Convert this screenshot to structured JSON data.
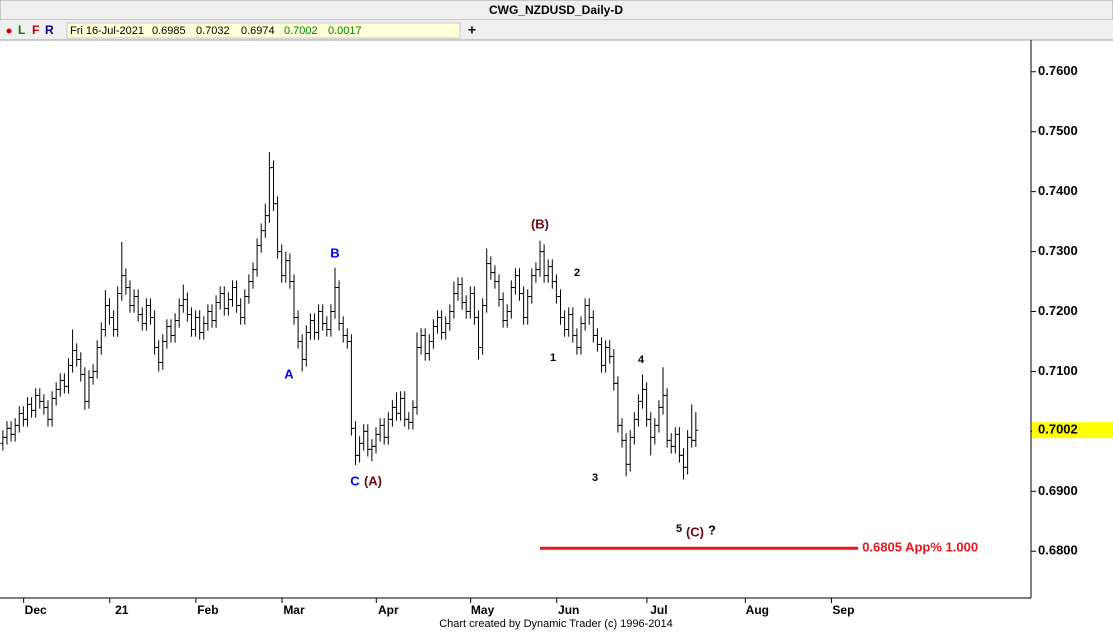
{
  "chart_data": {
    "type": "ohlc",
    "title": "CWG_NZDUSD_Daily-D",
    "menu": [
      "L",
      "F",
      "R"
    ],
    "date": "Fri 16-Jul-2021",
    "change": 0.0017,
    "footer": "Chart created by Dynamic Trader  (c) 1996-2014",
    "color": "#000000",
    "ylim": [
      0.6722,
      0.7653
    ],
    "yticks": [
      {
        "value": 0.68,
        "label": "0.6800"
      },
      {
        "value": 0.69,
        "label": "0.6900"
      },
      {
        "value": 0.7,
        "label": "0.7000"
      },
      {
        "value": 0.71,
        "label": "0.7100"
      },
      {
        "value": 0.72,
        "label": "0.7200"
      },
      {
        "value": 0.73,
        "label": "0.7300"
      },
      {
        "value": 0.74,
        "label": "0.7400"
      },
      {
        "value": 0.75,
        "label": "0.7500"
      },
      {
        "value": 0.76,
        "label": "0.7600"
      }
    ],
    "xlim": [
      -0.7,
      250.5
    ],
    "xticks": [
      {
        "value": 8,
        "label": "Dec"
      },
      {
        "value": 29,
        "label": "21"
      },
      {
        "value": 50,
        "label": "Feb"
      },
      {
        "value": 71,
        "label": "Mar"
      },
      {
        "value": 94,
        "label": "Apr"
      },
      {
        "value": 117,
        "label": "May"
      },
      {
        "value": 138,
        "label": "Jun"
      },
      {
        "value": 160,
        "label": "Jul"
      },
      {
        "value": 184,
        "label": "Aug"
      },
      {
        "value": 205,
        "label": "Sep"
      }
    ],
    "open": [
      0.698,
      0.699,
      0.7005,
      0.6995,
      0.701,
      0.703,
      0.702,
      0.7045,
      0.7035,
      0.706,
      0.705,
      0.704,
      0.702,
      0.7055,
      0.707,
      0.7085,
      0.7075,
      0.711,
      0.7135,
      0.712,
      0.7095,
      0.705,
      0.709,
      0.71,
      0.714,
      0.717,
      0.721,
      0.719,
      0.717,
      0.723,
      0.726,
      0.724,
      0.721,
      0.7225,
      0.7195,
      0.718,
      0.721,
      0.719,
      0.714,
      0.7115,
      0.715,
      0.7175,
      0.716,
      0.7185,
      0.721,
      0.722,
      0.7195,
      0.717,
      0.719,
      0.7165,
      0.718,
      0.72,
      0.7185,
      0.7215,
      0.723,
      0.7205,
      0.722,
      0.724,
      0.721,
      0.719,
      0.7225,
      0.725,
      0.727,
      0.731,
      0.7335,
      0.736,
      0.744,
      0.738,
      0.73,
      0.726,
      0.7285,
      0.725,
      0.719,
      0.715,
      0.712,
      0.7165,
      0.7185,
      0.7165,
      0.72,
      0.718,
      0.717,
      0.72,
      0.724,
      0.718,
      0.716,
      0.715,
      0.7005,
      0.696,
      0.698,
      0.7,
      0.697,
      0.6975,
      0.6995,
      0.701,
      0.699,
      0.702,
      0.704,
      0.703,
      0.7055,
      0.702,
      0.7015,
      0.704,
      0.714,
      0.716,
      0.713,
      0.715,
      0.7175,
      0.719,
      0.7165,
      0.718,
      0.72,
      0.723,
      0.7245,
      0.7215,
      0.72,
      0.723,
      0.719,
      0.714,
      0.721,
      0.728,
      0.7265,
      0.725,
      0.722,
      0.7185,
      0.72,
      0.724,
      0.726,
      0.723,
      0.719,
      0.7225,
      0.726,
      0.727,
      0.73,
      0.726,
      0.7275,
      0.725,
      0.7225,
      0.719,
      0.717,
      0.7195,
      0.716,
      0.714,
      0.718,
      0.721,
      0.719,
      0.716,
      0.7145,
      0.711,
      0.714,
      0.7125,
      0.708,
      0.701,
      0.6985,
      0.6945,
      0.699,
      0.702,
      0.705,
      0.707,
      0.702,
      0.699,
      0.701,
      0.704,
      0.706,
      0.6985,
      0.6975,
      0.6995,
      0.696,
      0.694,
      0.699,
      0.6985
    ],
    "high": [
      0.7002,
      0.7017,
      0.7017,
      0.7022,
      0.7042,
      0.7042,
      0.7057,
      0.7057,
      0.7072,
      0.7072,
      0.7062,
      0.7052,
      0.7067,
      0.7082,
      0.7097,
      0.7097,
      0.7122,
      0.717,
      0.7147,
      0.7132,
      0.7107,
      0.7102,
      0.7112,
      0.7152,
      0.7182,
      0.7236,
      0.7222,
      0.7202,
      0.7242,
      0.7316,
      0.7272,
      0.7252,
      0.7237,
      0.7237,
      0.7207,
      0.7222,
      0.7222,
      0.7202,
      0.7152,
      0.7162,
      0.7187,
      0.7187,
      0.7197,
      0.7222,
      0.7245,
      0.7232,
      0.7207,
      0.7202,
      0.7202,
      0.7192,
      0.7212,
      0.7212,
      0.7227,
      0.7242,
      0.7242,
      0.7232,
      0.7252,
      0.7252,
      0.7222,
      0.7237,
      0.7262,
      0.7282,
      0.7322,
      0.7347,
      0.738,
      0.7466,
      0.7452,
      0.7392,
      0.7312,
      0.73,
      0.7297,
      0.7262,
      0.7202,
      0.7162,
      0.7177,
      0.7197,
      0.7197,
      0.7212,
      0.7212,
      0.7192,
      0.7212,
      0.7273,
      0.7252,
      0.7192,
      0.7172,
      0.7162,
      0.7017,
      0.6992,
      0.7012,
      0.7012,
      0.6987,
      0.7007,
      0.7022,
      0.7022,
      0.7032,
      0.7052,
      0.7065,
      0.7067,
      0.7067,
      0.7032,
      0.7052,
      0.7165,
      0.7172,
      0.7172,
      0.7162,
      0.7187,
      0.7202,
      0.7202,
      0.7192,
      0.7212,
      0.725,
      0.7257,
      0.7257,
      0.7227,
      0.7242,
      0.7242,
      0.7202,
      0.7222,
      0.7305,
      0.7292,
      0.7277,
      0.7262,
      0.7232,
      0.7212,
      0.7252,
      0.7272,
      0.7272,
      0.7242,
      0.7237,
      0.7272,
      0.7282,
      0.7318,
      0.7312,
      0.7287,
      0.7287,
      0.7262,
      0.7237,
      0.7202,
      0.7207,
      0.7207,
      0.7172,
      0.7192,
      0.7222,
      0.7222,
      0.7202,
      0.7172,
      0.7157,
      0.7152,
      0.7152,
      0.7137,
      0.7092,
      0.7022,
      0.6997,
      0.7002,
      0.7032,
      0.7062,
      0.7095,
      0.7082,
      0.7032,
      0.7022,
      0.7052,
      0.7107,
      0.7072,
      0.6997,
      0.7007,
      0.7007,
      0.6972,
      0.7002,
      0.7045,
      0.7032
    ],
    "low": [
      0.6968,
      0.6978,
      0.6983,
      0.6983,
      0.6998,
      0.7008,
      0.7008,
      0.7023,
      0.7023,
      0.7038,
      0.7028,
      0.7008,
      0.7008,
      0.7043,
      0.7058,
      0.7063,
      0.7063,
      0.7098,
      0.7108,
      0.7083,
      0.7036,
      0.7038,
      0.7078,
      0.7088,
      0.7128,
      0.7158,
      0.7178,
      0.7158,
      0.7158,
      0.7218,
      0.7228,
      0.7198,
      0.7198,
      0.7183,
      0.7168,
      0.7168,
      0.7178,
      0.7128,
      0.71,
      0.7103,
      0.7138,
      0.7148,
      0.7148,
      0.7173,
      0.7198,
      0.7183,
      0.7158,
      0.7158,
      0.7153,
      0.7153,
      0.7168,
      0.7173,
      0.7173,
      0.7203,
      0.7193,
      0.7193,
      0.7208,
      0.7198,
      0.7178,
      0.7178,
      0.7213,
      0.7238,
      0.7258,
      0.7298,
      0.7323,
      0.7348,
      0.7368,
      0.7288,
      0.7248,
      0.7248,
      0.7238,
      0.7178,
      0.7138,
      0.71,
      0.7108,
      0.7153,
      0.7153,
      0.7153,
      0.7168,
      0.7158,
      0.7158,
      0.7188,
      0.7168,
      0.7148,
      0.7138,
      0.6993,
      0.6944,
      0.6948,
      0.6968,
      0.6958,
      0.695,
      0.6963,
      0.6983,
      0.6978,
      0.6978,
      0.7008,
      0.7018,
      0.7018,
      0.7008,
      0.7003,
      0.7003,
      0.7028,
      0.7128,
      0.7118,
      0.7118,
      0.7138,
      0.7163,
      0.7153,
      0.7153,
      0.7168,
      0.7188,
      0.7218,
      0.7203,
      0.7188,
      0.7188,
      0.7178,
      0.712,
      0.7128,
      0.7198,
      0.7253,
      0.7238,
      0.7208,
      0.7173,
      0.7173,
      0.7188,
      0.7228,
      0.7218,
      0.7178,
      0.7178,
      0.7213,
      0.7248,
      0.7258,
      0.7248,
      0.7248,
      0.7238,
      0.7213,
      0.7178,
      0.7158,
      0.7158,
      0.7148,
      0.7128,
      0.7128,
      0.7168,
      0.7178,
      0.7148,
      0.7133,
      0.7098,
      0.7098,
      0.7113,
      0.7068,
      0.6998,
      0.6973,
      0.6925,
      0.6933,
      0.6978,
      0.7008,
      0.7038,
      0.7008,
      0.696,
      0.6978,
      0.6998,
      0.7028,
      0.6973,
      0.6963,
      0.6963,
      0.6948,
      0.692,
      0.6928,
      0.6973,
      0.6974
    ],
    "close": [
      0.699,
      0.7005,
      0.6995,
      0.701,
      0.703,
      0.702,
      0.7045,
      0.7035,
      0.706,
      0.705,
      0.704,
      0.702,
      0.7055,
      0.707,
      0.7085,
      0.7075,
      0.711,
      0.7135,
      0.712,
      0.7095,
      0.705,
      0.709,
      0.71,
      0.714,
      0.717,
      0.721,
      0.719,
      0.717,
      0.723,
      0.726,
      0.724,
      0.721,
      0.7225,
      0.7195,
      0.718,
      0.721,
      0.719,
      0.714,
      0.7115,
      0.715,
      0.7175,
      0.716,
      0.7185,
      0.721,
      0.722,
      0.7195,
      0.717,
      0.719,
      0.7165,
      0.718,
      0.72,
      0.7185,
      0.7215,
      0.723,
      0.7205,
      0.722,
      0.724,
      0.721,
      0.719,
      0.7225,
      0.725,
      0.727,
      0.731,
      0.7335,
      0.736,
      0.744,
      0.738,
      0.73,
      0.726,
      0.7285,
      0.725,
      0.719,
      0.715,
      0.712,
      0.7165,
      0.7185,
      0.7165,
      0.72,
      0.718,
      0.717,
      0.72,
      0.724,
      0.718,
      0.716,
      0.715,
      0.7005,
      0.696,
      0.698,
      0.7,
      0.697,
      0.6975,
      0.6995,
      0.701,
      0.699,
      0.702,
      0.704,
      0.703,
      0.7055,
      0.702,
      0.7015,
      0.704,
      0.714,
      0.716,
      0.713,
      0.715,
      0.7175,
      0.719,
      0.7165,
      0.718,
      0.72,
      0.723,
      0.7245,
      0.7215,
      0.72,
      0.723,
      0.719,
      0.714,
      0.721,
      0.728,
      0.7265,
      0.725,
      0.722,
      0.7185,
      0.72,
      0.724,
      0.726,
      0.723,
      0.719,
      0.7225,
      0.726,
      0.727,
      0.73,
      0.726,
      0.7275,
      0.725,
      0.7225,
      0.719,
      0.717,
      0.7195,
      0.716,
      0.714,
      0.718,
      0.721,
      0.719,
      0.716,
      0.7145,
      0.711,
      0.714,
      0.7125,
      0.708,
      0.701,
      0.6985,
      0.6945,
      0.699,
      0.702,
      0.705,
      0.707,
      0.702,
      0.699,
      0.701,
      0.704,
      0.706,
      0.6985,
      0.6975,
      0.6995,
      0.696,
      0.694,
      0.699,
      0.6985,
      0.7002
    ],
    "target": {
      "value": 0.6805,
      "label": "0.6805 App% 1.000",
      "start": 131,
      "end": 208.6,
      "color": "#e8141c"
    },
    "annotations": [
      {
        "text": "A",
        "color": "#0000ff"
      },
      {
        "text": "B",
        "color": "#0000ff"
      },
      {
        "text": "C",
        "color": "#0000ff"
      },
      {
        "text": "(A)",
        "color": "#6b0a0a"
      },
      {
        "text": "(B)",
        "color": "#6b0a0a"
      },
      {
        "text": "1",
        "color": "#000000"
      },
      {
        "text": "2",
        "color": "#000000"
      },
      {
        "text": "3",
        "color": "#000000"
      },
      {
        "text": "4",
        "color": "#000000"
      },
      {
        "text": "5",
        "color": "#000000"
      },
      {
        "text": "(C)",
        "color": "#6b0a0a"
      },
      {
        "text": "?",
        "color": "#000000"
      }
    ]
  }
}
